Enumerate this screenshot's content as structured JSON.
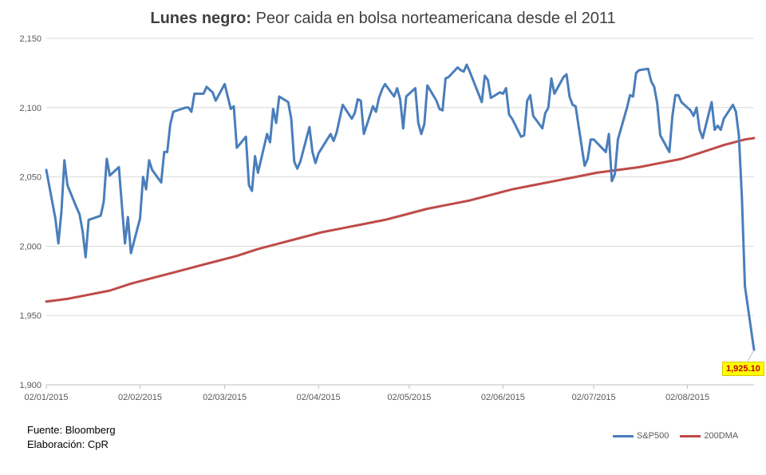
{
  "title": {
    "bold": "Lunes negro:",
    "rest": " Peor caida en bolsa norteamericana desde el 2011"
  },
  "source": {
    "line1": "Fuente: Bloomberg",
    "line2": "Elaboración: CpR"
  },
  "callout": "1,925.10",
  "colors": {
    "sp500": "#4a7ebb",
    "dma200": "#be4b48",
    "grid": "#d9d9d9",
    "callout_bg": "#ffff00",
    "callout_text": "#c00000"
  },
  "chart_data": {
    "type": "line",
    "title": "Lunes negro: Peor caida en bolsa norteamericana desde el 2011",
    "ylim": [
      1900,
      2150
    ],
    "yticks": [
      1900,
      1950,
      2000,
      2050,
      2100,
      2150
    ],
    "ytick_labels": [
      "1,900",
      "1,950",
      "2,000",
      "2,050",
      "2,100",
      "2,150"
    ],
    "xtick_labels": [
      "02/01/2015",
      "02/02/2015",
      "02/03/2015",
      "02/04/2015",
      "02/05/2015",
      "02/06/2015",
      "02/07/2015",
      "02/08/2015"
    ],
    "xtick_dates": [
      "2015-01-02",
      "2015-02-02",
      "2015-03-02",
      "2015-04-02",
      "2015-05-02",
      "2015-06-02",
      "2015-07-02",
      "2015-08-02"
    ],
    "xlim": [
      "2015-01-02",
      "2015-08-24"
    ],
    "grid": "horizontal",
    "legend_position": "bottom-right",
    "series": [
      {
        "name": "S&P500",
        "color": "#4a7ebb",
        "points": [
          [
            "2015-01-02",
            2055
          ],
          [
            "2015-01-05",
            2020
          ],
          [
            "2015-01-06",
            2002
          ],
          [
            "2015-01-07",
            2025
          ],
          [
            "2015-01-08",
            2062
          ],
          [
            "2015-01-09",
            2044
          ],
          [
            "2015-01-12",
            2028
          ],
          [
            "2015-01-13",
            2023
          ],
          [
            "2015-01-14",
            2011
          ],
          [
            "2015-01-15",
            1992
          ],
          [
            "2015-01-16",
            2019
          ],
          [
            "2015-01-20",
            2022
          ],
          [
            "2015-01-21",
            2032
          ],
          [
            "2015-01-22",
            2063
          ],
          [
            "2015-01-23",
            2051
          ],
          [
            "2015-01-26",
            2057
          ],
          [
            "2015-01-27",
            2029
          ],
          [
            "2015-01-28",
            2002
          ],
          [
            "2015-01-29",
            2021
          ],
          [
            "2015-01-30",
            1995
          ],
          [
            "2015-02-02",
            2020
          ],
          [
            "2015-02-03",
            2050
          ],
          [
            "2015-02-04",
            2041
          ],
          [
            "2015-02-05",
            2062
          ],
          [
            "2015-02-06",
            2055
          ],
          [
            "2015-02-09",
            2046
          ],
          [
            "2015-02-10",
            2068
          ],
          [
            "2015-02-11",
            2068
          ],
          [
            "2015-02-12",
            2088
          ],
          [
            "2015-02-13",
            2097
          ],
          [
            "2015-02-17",
            2100
          ],
          [
            "2015-02-18",
            2100
          ],
          [
            "2015-02-19",
            2097
          ],
          [
            "2015-02-20",
            2110
          ],
          [
            "2015-02-23",
            2110
          ],
          [
            "2015-02-24",
            2115
          ],
          [
            "2015-02-25",
            2113
          ],
          [
            "2015-02-26",
            2111
          ],
          [
            "2015-02-27",
            2105
          ],
          [
            "2015-03-02",
            2117
          ],
          [
            "2015-03-03",
            2108
          ],
          [
            "2015-03-04",
            2099
          ],
          [
            "2015-03-05",
            2101
          ],
          [
            "2015-03-06",
            2071
          ],
          [
            "2015-03-09",
            2079
          ],
          [
            "2015-03-10",
            2044
          ],
          [
            "2015-03-11",
            2040
          ],
          [
            "2015-03-12",
            2065
          ],
          [
            "2015-03-13",
            2053
          ],
          [
            "2015-03-16",
            2081
          ],
          [
            "2015-03-17",
            2075
          ],
          [
            "2015-03-18",
            2099
          ],
          [
            "2015-03-19",
            2089
          ],
          [
            "2015-03-20",
            2108
          ],
          [
            "2015-03-23",
            2104
          ],
          [
            "2015-03-24",
            2092
          ],
          [
            "2015-03-25",
            2061
          ],
          [
            "2015-03-26",
            2056
          ],
          [
            "2015-03-27",
            2061
          ],
          [
            "2015-03-30",
            2086
          ],
          [
            "2015-03-31",
            2068
          ],
          [
            "2015-04-01",
            2060
          ],
          [
            "2015-04-02",
            2067
          ],
          [
            "2015-04-06",
            2081
          ],
          [
            "2015-04-07",
            2076
          ],
          [
            "2015-04-08",
            2082
          ],
          [
            "2015-04-09",
            2092
          ],
          [
            "2015-04-10",
            2102
          ],
          [
            "2015-04-13",
            2092
          ],
          [
            "2015-04-14",
            2096
          ],
          [
            "2015-04-15",
            2106
          ],
          [
            "2015-04-16",
            2105
          ],
          [
            "2015-04-17",
            2081
          ],
          [
            "2015-04-20",
            2101
          ],
          [
            "2015-04-21",
            2097
          ],
          [
            "2015-04-22",
            2107
          ],
          [
            "2015-04-23",
            2113
          ],
          [
            "2015-04-24",
            2117
          ],
          [
            "2015-04-27",
            2108
          ],
          [
            "2015-04-28",
            2114
          ],
          [
            "2015-04-29",
            2106
          ],
          [
            "2015-04-30",
            2085
          ],
          [
            "2015-05-01",
            2108
          ],
          [
            "2015-05-04",
            2114
          ],
          [
            "2015-05-05",
            2089
          ],
          [
            "2015-05-06",
            2081
          ],
          [
            "2015-05-07",
            2088
          ],
          [
            "2015-05-08",
            2116
          ],
          [
            "2015-05-11",
            2105
          ],
          [
            "2015-05-12",
            2099
          ],
          [
            "2015-05-13",
            2098
          ],
          [
            "2015-05-14",
            2121
          ],
          [
            "2015-05-15",
            2122
          ],
          [
            "2015-05-18",
            2129
          ],
          [
            "2015-05-19",
            2127
          ],
          [
            "2015-05-20",
            2126
          ],
          [
            "2015-05-21",
            2131
          ],
          [
            "2015-05-22",
            2126
          ],
          [
            "2015-05-26",
            2104
          ],
          [
            "2015-05-27",
            2123
          ],
          [
            "2015-05-28",
            2120
          ],
          [
            "2015-05-29",
            2107
          ],
          [
            "2015-06-01",
            2111
          ],
          [
            "2015-06-02",
            2110
          ],
          [
            "2015-06-03",
            2114
          ],
          [
            "2015-06-04",
            2095
          ],
          [
            "2015-06-05",
            2092
          ],
          [
            "2015-06-08",
            2079
          ],
          [
            "2015-06-09",
            2080
          ],
          [
            "2015-06-10",
            2105
          ],
          [
            "2015-06-11",
            2109
          ],
          [
            "2015-06-12",
            2094
          ],
          [
            "2015-06-15",
            2085
          ],
          [
            "2015-06-16",
            2096
          ],
          [
            "2015-06-17",
            2100
          ],
          [
            "2015-06-18",
            2121
          ],
          [
            "2015-06-19",
            2110
          ],
          [
            "2015-06-22",
            2122
          ],
          [
            "2015-06-23",
            2124
          ],
          [
            "2015-06-24",
            2108
          ],
          [
            "2015-06-25",
            2102
          ],
          [
            "2015-06-26",
            2101
          ],
          [
            "2015-06-29",
            2058
          ],
          [
            "2015-06-30",
            2063
          ],
          [
            "2015-07-01",
            2077
          ],
          [
            "2015-07-02",
            2077
          ],
          [
            "2015-07-06",
            2068
          ],
          [
            "2015-07-07",
            2081
          ],
          [
            "2015-07-08",
            2047
          ],
          [
            "2015-07-09",
            2052
          ],
          [
            "2015-07-10",
            2077
          ],
          [
            "2015-07-13",
            2100
          ],
          [
            "2015-07-14",
            2109
          ],
          [
            "2015-07-15",
            2108
          ],
          [
            "2015-07-16",
            2125
          ],
          [
            "2015-07-17",
            2127
          ],
          [
            "2015-07-20",
            2128
          ],
          [
            "2015-07-21",
            2119
          ],
          [
            "2015-07-22",
            2115
          ],
          [
            "2015-07-23",
            2103
          ],
          [
            "2015-07-24",
            2080
          ],
          [
            "2015-07-27",
            2068
          ],
          [
            "2015-07-28",
            2094
          ],
          [
            "2015-07-29",
            2109
          ],
          [
            "2015-07-30",
            2109
          ],
          [
            "2015-07-31",
            2104
          ],
          [
            "2015-08-03",
            2098
          ],
          [
            "2015-08-04",
            2094
          ],
          [
            "2015-08-05",
            2100
          ],
          [
            "2015-08-06",
            2084
          ],
          [
            "2015-08-07",
            2078
          ],
          [
            "2015-08-10",
            2104
          ],
          [
            "2015-08-11",
            2084
          ],
          [
            "2015-08-12",
            2087
          ],
          [
            "2015-08-13",
            2084
          ],
          [
            "2015-08-14",
            2092
          ],
          [
            "2015-08-17",
            2102
          ],
          [
            "2015-08-18",
            2097
          ],
          [
            "2015-08-19",
            2080
          ],
          [
            "2015-08-20",
            2035
          ],
          [
            "2015-08-21",
            1971
          ],
          [
            "2015-08-24",
            1925.1
          ]
        ]
      },
      {
        "name": "200DMA",
        "color": "#be4b48",
        "points": [
          [
            "2015-01-02",
            1960
          ],
          [
            "2015-01-09",
            1962
          ],
          [
            "2015-01-16",
            1965
          ],
          [
            "2015-01-23",
            1968
          ],
          [
            "2015-01-30",
            1973
          ],
          [
            "2015-02-06",
            1977
          ],
          [
            "2015-02-13",
            1981
          ],
          [
            "2015-02-20",
            1985
          ],
          [
            "2015-02-27",
            1989
          ],
          [
            "2015-03-06",
            1993
          ],
          [
            "2015-03-13",
            1998
          ],
          [
            "2015-03-20",
            2002
          ],
          [
            "2015-03-27",
            2006
          ],
          [
            "2015-04-03",
            2010
          ],
          [
            "2015-04-10",
            2013
          ],
          [
            "2015-04-17",
            2016
          ],
          [
            "2015-04-24",
            2019
          ],
          [
            "2015-05-01",
            2023
          ],
          [
            "2015-05-08",
            2027
          ],
          [
            "2015-05-15",
            2030
          ],
          [
            "2015-05-22",
            2033
          ],
          [
            "2015-05-29",
            2037
          ],
          [
            "2015-06-05",
            2041
          ],
          [
            "2015-06-12",
            2044
          ],
          [
            "2015-06-19",
            2047
          ],
          [
            "2015-06-26",
            2050
          ],
          [
            "2015-07-03",
            2053
          ],
          [
            "2015-07-10",
            2055
          ],
          [
            "2015-07-17",
            2057
          ],
          [
            "2015-07-24",
            2060
          ],
          [
            "2015-07-31",
            2063
          ],
          [
            "2015-08-07",
            2068
          ],
          [
            "2015-08-14",
            2073
          ],
          [
            "2015-08-21",
            2077
          ],
          [
            "2015-08-24",
            2078
          ]
        ]
      }
    ]
  }
}
